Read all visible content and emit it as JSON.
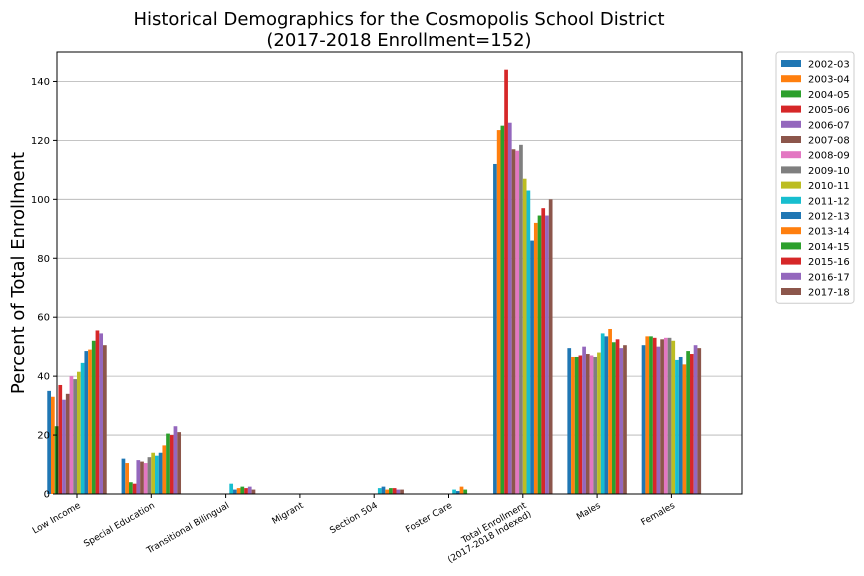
{
  "chart_data": {
    "type": "bar",
    "title": "Historical Demographics for the Cosmopolis School District",
    "subtitle": "(2017-2018 Enrollment=152)",
    "xlabel": "",
    "ylabel": "Percent of Total Enrollment",
    "ylim": [
      0,
      150
    ],
    "yticks": [
      0,
      20,
      40,
      60,
      80,
      100,
      120,
      140
    ],
    "grid": "horizontal",
    "legend_position": "outside-top-right",
    "categories": [
      [
        "Low Income"
      ],
      [
        "Special Education"
      ],
      [
        "Transitional Bilingual"
      ],
      [
        "Migrant"
      ],
      [
        "Section 504"
      ],
      [
        "Foster Care"
      ],
      [
        "Total Enrollment",
        "(2017-2018 Indexed)"
      ],
      [
        "Males"
      ],
      [
        "Females"
      ]
    ],
    "series": [
      {
        "name": "2002-03",
        "color": "#1f77b4",
        "values": [
          35,
          12,
          0,
          0,
          0,
          0,
          112,
          49.5,
          50.5
        ]
      },
      {
        "name": "2003-04",
        "color": "#ff7f0e",
        "values": [
          33,
          10.5,
          0,
          0,
          0,
          0,
          123.5,
          46.5,
          53.5
        ]
      },
      {
        "name": "2004-05",
        "color": "#2ca02c",
        "values": [
          23,
          4,
          0,
          0,
          0,
          0,
          125,
          46.5,
          53.5
        ]
      },
      {
        "name": "2005-06",
        "color": "#d62728",
        "values": [
          37,
          3.5,
          0,
          0,
          0,
          0,
          144,
          47,
          53
        ]
      },
      {
        "name": "2006-07",
        "color": "#9467bd",
        "values": [
          32,
          11.5,
          0,
          0,
          0,
          0,
          126,
          50,
          50
        ]
      },
      {
        "name": "2007-08",
        "color": "#8c564b",
        "values": [
          34,
          11,
          0,
          0,
          0,
          0,
          117,
          47.5,
          52.5
        ]
      },
      {
        "name": "2008-09",
        "color": "#e377c2",
        "values": [
          40,
          10.5,
          0,
          0,
          0,
          0,
          116.5,
          47,
          53
        ]
      },
      {
        "name": "2009-10",
        "color": "#7f7f7f",
        "values": [
          39,
          12.5,
          0,
          0,
          0,
          0,
          118.5,
          46.5,
          53
        ]
      },
      {
        "name": "2010-11",
        "color": "#bcbd22",
        "values": [
          41.5,
          14,
          0,
          0,
          0,
          0,
          107,
          48,
          52
        ]
      },
      {
        "name": "2011-12",
        "color": "#17becf",
        "values": [
          44.5,
          13,
          3.5,
          0,
          2,
          1.5,
          103,
          54.5,
          45.5
        ]
      },
      {
        "name": "2012-13",
        "color": "#1f77b4",
        "values": [
          48.5,
          14,
          1.5,
          0,
          2.5,
          1,
          86,
          53.5,
          46.5
        ]
      },
      {
        "name": "2013-14",
        "color": "#ff7f0e",
        "values": [
          49,
          16.5,
          2,
          0,
          1.5,
          2.5,
          92,
          56,
          44
        ]
      },
      {
        "name": "2014-15",
        "color": "#2ca02c",
        "values": [
          52,
          20.5,
          2.5,
          0,
          2,
          1.5,
          94.5,
          51.5,
          48.5
        ]
      },
      {
        "name": "2015-16",
        "color": "#d62728",
        "values": [
          55.5,
          20,
          2,
          0,
          2,
          0,
          97,
          52.5,
          47.5
        ]
      },
      {
        "name": "2016-17",
        "color": "#9467bd",
        "values": [
          54.5,
          23,
          2.5,
          0,
          1.5,
          0,
          94.5,
          49.5,
          50.5
        ]
      },
      {
        "name": "2017-18",
        "color": "#8c564b",
        "values": [
          50.5,
          21,
          1.5,
          0,
          1.5,
          0,
          100,
          50.5,
          49.5
        ]
      }
    ]
  }
}
